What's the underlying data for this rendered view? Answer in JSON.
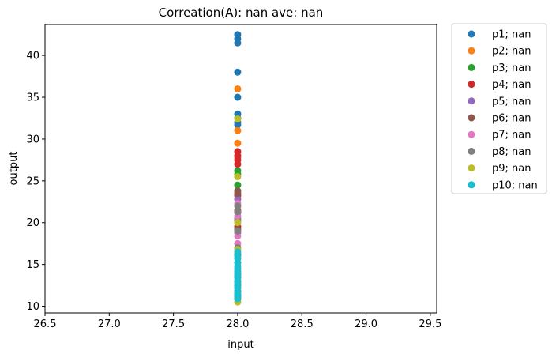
{
  "chart_data": {
    "type": "scatter",
    "title": "Correation(A): nan ave: nan",
    "xlabel": "input",
    "ylabel": "output",
    "xlim": [
      26.5,
      29.55
    ],
    "ylim": [
      9.2,
      43.7
    ],
    "xticks": [
      "26.5",
      "27.0",
      "27.5",
      "28.0",
      "28.5",
      "29.0",
      "29.5"
    ],
    "yticks": [
      "10",
      "15",
      "20",
      "25",
      "30",
      "35",
      "40"
    ],
    "legend_position": "outside-right",
    "grid": false,
    "series": [
      {
        "name": "p1; nan",
        "color": "#1f77b4",
        "x": [
          28,
          28,
          28,
          28,
          28,
          28,
          28,
          28,
          28
        ],
        "y": [
          42.5,
          42,
          41.5,
          38,
          35,
          33,
          32.5,
          32,
          31.7
        ]
      },
      {
        "name": "p2; nan",
        "color": "#ff7f0e",
        "x": [
          28,
          28,
          28,
          28,
          28,
          28
        ],
        "y": [
          36,
          31,
          29.5,
          27.8,
          23.2,
          11.5
        ]
      },
      {
        "name": "p3; nan",
        "color": "#2ca02c",
        "x": [
          28,
          28,
          28,
          28,
          28,
          28
        ],
        "y": [
          26.2,
          25.8,
          24.5,
          20.2,
          13.5,
          12.2
        ]
      },
      {
        "name": "p4; nan",
        "color": "#d62728",
        "x": [
          28,
          28,
          28,
          28,
          28,
          28,
          28,
          28
        ],
        "y": [
          28.5,
          28,
          27.5,
          27,
          23.3,
          21.5,
          19.5,
          11.2
        ]
      },
      {
        "name": "p5; nan",
        "color": "#9467bd",
        "x": [
          28,
          28,
          28,
          28
        ],
        "y": [
          22.8,
          20.5,
          18.8,
          13.8
        ]
      },
      {
        "name": "p6; nan",
        "color": "#8c564b",
        "x": [
          28,
          28,
          28,
          28,
          28,
          28,
          28
        ],
        "y": [
          23.8,
          23.5,
          21.2,
          19.2,
          16.2,
          13,
          11.8
        ]
      },
      {
        "name": "p7; nan",
        "color": "#e377c2",
        "x": [
          28,
          28,
          28,
          28,
          28,
          28,
          28
        ],
        "y": [
          22.3,
          20.8,
          18.4,
          17.5,
          15.2,
          14,
          12.8
        ]
      },
      {
        "name": "p8; nan",
        "color": "#7f7f7f",
        "x": [
          28,
          28,
          28,
          28,
          28
        ],
        "y": [
          22,
          21.3,
          19,
          17,
          12.5
        ]
      },
      {
        "name": "p9; nan",
        "color": "#bcbd22",
        "x": [
          28,
          28,
          28,
          28,
          28,
          28
        ],
        "y": [
          32.4,
          25.5,
          20,
          16.8,
          11,
          10.5
        ]
      },
      {
        "name": "p10; nan",
        "color": "#17becf",
        "x": [
          28,
          28,
          28,
          28,
          28,
          28,
          28,
          28,
          28,
          28,
          28,
          28,
          28,
          28,
          28,
          28
        ],
        "y": [
          16.5,
          16,
          15.7,
          15.2,
          14.8,
          14.5,
          14.2,
          13.8,
          13.4,
          13,
          12.6,
          12.2,
          11.8,
          11.4,
          11,
          10.9
        ]
      }
    ]
  }
}
